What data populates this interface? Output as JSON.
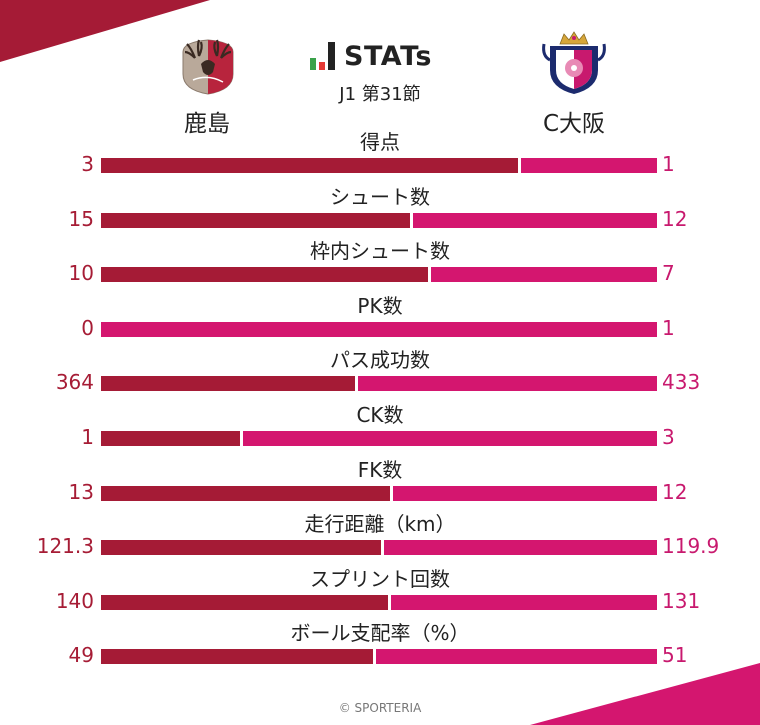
{
  "brand": {
    "title": "STATs",
    "round": "J1 第31節"
  },
  "teams": {
    "home": "鹿島",
    "away": "C大阪"
  },
  "colors": {
    "home": "#a51b36",
    "away": "#d4166f",
    "home_text": "#a61c35",
    "away_text": "#c8196e"
  },
  "chart_data": {
    "type": "bar",
    "categories": [
      "得点",
      "シュート数",
      "枠内シュート数",
      "PK数",
      "パス成功数",
      "CK数",
      "FK数",
      "走行距離（km）",
      "スプリント回数",
      "ボール支配率（%）"
    ],
    "series": [
      {
        "name": "鹿島",
        "values": [
          "3",
          "15",
          "10",
          "0",
          "364",
          "1",
          "13",
          "121.3",
          "140",
          "49"
        ]
      },
      {
        "name": "C大阪",
        "values": [
          "1",
          "12",
          "7",
          "1",
          "433",
          "3",
          "12",
          "119.9",
          "131",
          "51"
        ]
      }
    ]
  },
  "footer": "© SPORTERIA"
}
